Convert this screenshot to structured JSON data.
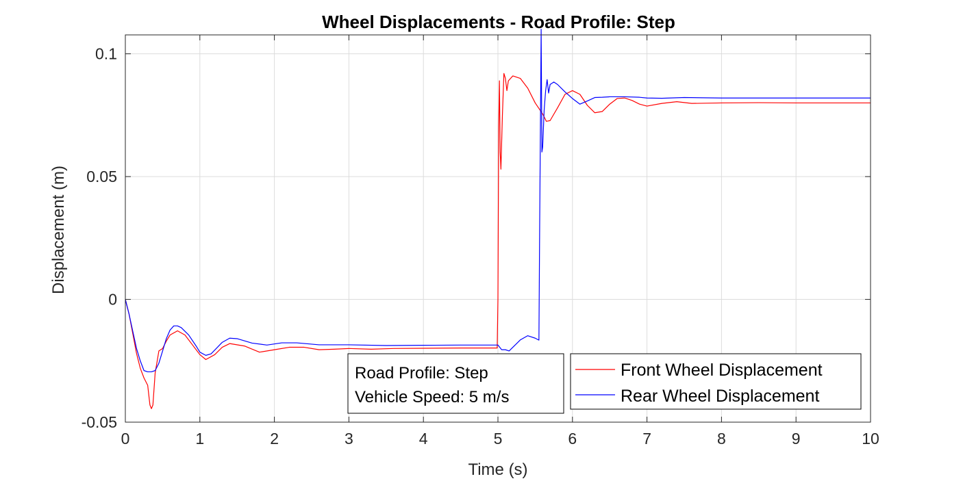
{
  "chart_data": {
    "type": "line",
    "title": "Wheel Displacements - Road Profile: Step",
    "xlabel": "Time (s)",
    "ylabel": "Displacement (m)",
    "xlim": [
      0,
      10
    ],
    "ylim": [
      -0.05,
      0.1077
    ],
    "xticks": [
      0,
      1,
      2,
      3,
      4,
      5,
      6,
      7,
      8,
      9,
      10
    ],
    "xtick_labels": [
      "0",
      "1",
      "2",
      "3",
      "4",
      "5",
      "6",
      "7",
      "8",
      "9",
      "10"
    ],
    "yticks": [
      -0.05,
      0,
      0.05,
      0.1
    ],
    "ytick_labels": [
      "-0.05",
      "0",
      "0.05",
      "0.1"
    ],
    "grid": true,
    "legend_position": "bottom-right",
    "annotation": [
      "Road Profile: Step",
      "Vehicle Speed: 5 m/s"
    ],
    "series": [
      {
        "name": "Front Wheel Displacement",
        "color": "#ff0000",
        "x": [
          0,
          0.05,
          0.1,
          0.15,
          0.2,
          0.25,
          0.3,
          0.33,
          0.35,
          0.37,
          0.4,
          0.45,
          0.5,
          0.55,
          0.6,
          0.7,
          0.8,
          0.9,
          1.0,
          1.08,
          1.2,
          1.3,
          1.4,
          1.6,
          1.8,
          2.0,
          2.2,
          2.4,
          2.6,
          2.8,
          3.0,
          3.3,
          3.6,
          4.0,
          4.5,
          4.99,
          5.0,
          5.01,
          5.02,
          5.03,
          5.04,
          5.06,
          5.08,
          5.1,
          5.12,
          5.14,
          5.2,
          5.3,
          5.4,
          5.5,
          5.6,
          5.65,
          5.7,
          5.8,
          5.9,
          6.0,
          6.1,
          6.2,
          6.3,
          6.4,
          6.5,
          6.6,
          6.7,
          6.8,
          6.9,
          7.0,
          7.2,
          7.4,
          7.6,
          8.0,
          8.5,
          9.0,
          9.5,
          10.0
        ],
        "y": [
          0,
          -0.006,
          -0.014,
          -0.022,
          -0.028,
          -0.032,
          -0.035,
          -0.043,
          -0.0445,
          -0.043,
          -0.03,
          -0.021,
          -0.02,
          -0.017,
          -0.0145,
          -0.0128,
          -0.0145,
          -0.0185,
          -0.0225,
          -0.0245,
          -0.0225,
          -0.0195,
          -0.018,
          -0.019,
          -0.0215,
          -0.0205,
          -0.0195,
          -0.0195,
          -0.0205,
          -0.0203,
          -0.02,
          -0.0203,
          -0.02,
          -0.0199,
          -0.0198,
          -0.0198,
          0.0,
          0.07,
          0.089,
          0.06,
          0.053,
          0.075,
          0.092,
          0.09,
          0.085,
          0.089,
          0.091,
          0.09,
          0.086,
          0.08,
          0.0755,
          0.0725,
          0.0728,
          0.078,
          0.0835,
          0.085,
          0.0835,
          0.079,
          0.076,
          0.0765,
          0.0795,
          0.0818,
          0.082,
          0.081,
          0.0795,
          0.0787,
          0.0798,
          0.0805,
          0.0798,
          0.08,
          0.0801,
          0.08,
          0.08,
          0.08
        ]
      },
      {
        "name": "Rear Wheel Displacement",
        "color": "#0000ff",
        "x": [
          0,
          0.05,
          0.1,
          0.15,
          0.2,
          0.25,
          0.3,
          0.35,
          0.4,
          0.45,
          0.5,
          0.55,
          0.6,
          0.65,
          0.7,
          0.75,
          0.85,
          0.95,
          1.0,
          1.08,
          1.15,
          1.3,
          1.4,
          1.5,
          1.7,
          1.9,
          2.1,
          2.3,
          2.6,
          3.0,
          3.5,
          4.0,
          4.5,
          5.0,
          5.05,
          5.1,
          5.15,
          5.2,
          5.3,
          5.4,
          5.5,
          5.55,
          5.56,
          5.58,
          5.59,
          5.6,
          5.62,
          5.64,
          5.66,
          5.68,
          5.7,
          5.75,
          5.8,
          5.9,
          6.0,
          6.1,
          6.2,
          6.3,
          6.4,
          6.5,
          6.7,
          6.9,
          7.0,
          7.2,
          7.5,
          8.0,
          8.5,
          9.0,
          10.0
        ],
        "y": [
          0,
          -0.006,
          -0.013,
          -0.02,
          -0.025,
          -0.029,
          -0.0295,
          -0.0295,
          -0.029,
          -0.026,
          -0.021,
          -0.016,
          -0.0125,
          -0.0108,
          -0.0108,
          -0.0115,
          -0.0145,
          -0.019,
          -0.0215,
          -0.0228,
          -0.0222,
          -0.0175,
          -0.0158,
          -0.016,
          -0.0178,
          -0.0186,
          -0.0177,
          -0.0177,
          -0.0185,
          -0.0185,
          -0.0188,
          -0.0187,
          -0.0186,
          -0.0186,
          -0.0205,
          -0.0205,
          -0.021,
          -0.0195,
          -0.0165,
          -0.0148,
          -0.0158,
          -0.0166,
          0.03,
          0.11,
          0.06,
          0.062,
          0.077,
          0.085,
          0.0895,
          0.084,
          0.0875,
          0.0885,
          0.0875,
          0.0845,
          0.0818,
          0.0795,
          0.0808,
          0.0822,
          0.0823,
          0.0825,
          0.0825,
          0.0823,
          0.082,
          0.0819,
          0.0822,
          0.082,
          0.082,
          0.082,
          0.082
        ]
      }
    ]
  }
}
